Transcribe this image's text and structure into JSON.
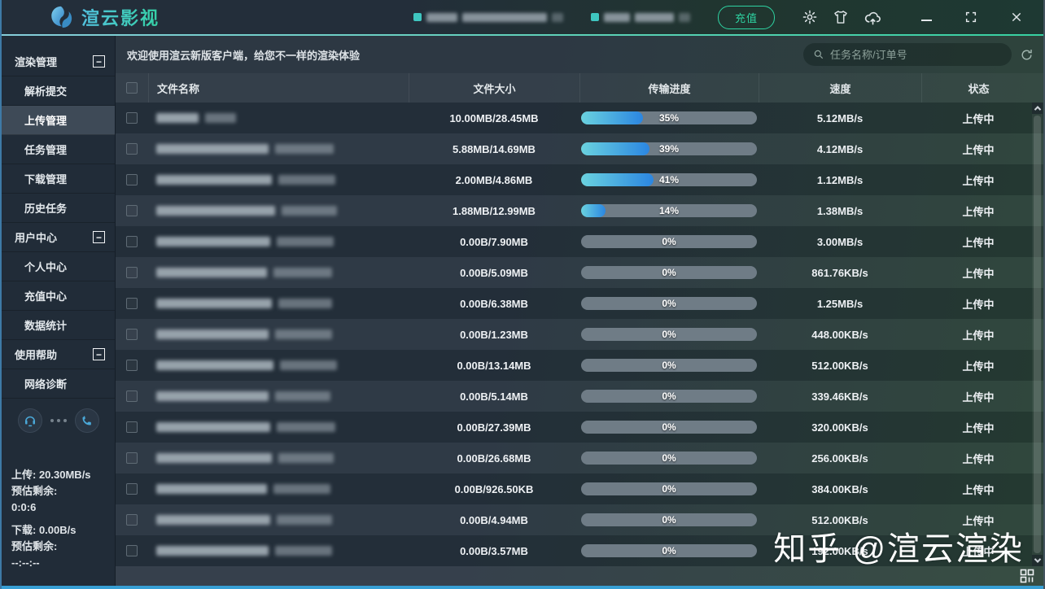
{
  "titlebar": {
    "logo_text": "渲云影视",
    "recharge_button": "充值"
  },
  "search": {
    "placeholder": "任务名称/订单号"
  },
  "welcome": "欢迎使用渲云新版客户端，给您不一样的渲染体验",
  "sidebar": {
    "collapse_glyph": "−",
    "groups": [
      {
        "label": "渲染管理",
        "items": [
          "解析提交",
          "上传管理",
          "任务管理",
          "下载管理",
          "历史任务"
        ]
      },
      {
        "label": "用户中心",
        "items": [
          "个人中心",
          "充值中心",
          "数据统计"
        ]
      },
      {
        "label": "使用帮助",
        "items": [
          "网络诊断"
        ]
      }
    ],
    "active_item": "上传管理",
    "transfer_stats": {
      "upload_label": "上传: 20.30MB/s",
      "upload_eta_label": "预估剩余:",
      "upload_eta": "0:0:6",
      "download_label": "下载: 0.00B/s",
      "download_eta_label": "预估剩余:",
      "download_eta": "--:--:--"
    }
  },
  "table": {
    "columns": [
      "文件名称",
      "文件大小",
      "传输进度",
      "速度",
      "状态"
    ],
    "rows": [
      {
        "size": "10.00MB/28.45MB",
        "progress_pct": 35,
        "progress_label": "35%",
        "speed": "5.12MB/s",
        "status": "上传中",
        "mask": [
          52,
          38
        ]
      },
      {
        "size": "5.88MB/14.69MB",
        "progress_pct": 39,
        "progress_label": "39%",
        "speed": "4.12MB/s",
        "status": "上传中",
        "mask": [
          138,
          72
        ]
      },
      {
        "size": "2.00MB/4.86MB",
        "progress_pct": 41,
        "progress_label": "41%",
        "speed": "1.12MB/s",
        "status": "上传中",
        "mask": [
          142,
          70
        ]
      },
      {
        "size": "1.88MB/12.99MB",
        "progress_pct": 14,
        "progress_label": "14%",
        "speed": "1.38MB/s",
        "status": "上传中",
        "mask": [
          146,
          68
        ]
      },
      {
        "size": "0.00B/7.90MB",
        "progress_pct": 0,
        "progress_label": "0%",
        "speed": "3.00MB/s",
        "status": "上传中",
        "mask": [
          140,
          70
        ]
      },
      {
        "size": "0.00B/5.09MB",
        "progress_pct": 0,
        "progress_label": "0%",
        "speed": "861.76KB/s",
        "status": "上传中",
        "mask": [
          136,
          72
        ]
      },
      {
        "size": "0.00B/6.38MB",
        "progress_pct": 0,
        "progress_label": "0%",
        "speed": "1.25MB/s",
        "status": "上传中",
        "mask": [
          142,
          66
        ]
      },
      {
        "size": "0.00B/1.23MB",
        "progress_pct": 0,
        "progress_label": "0%",
        "speed": "448.00KB/s",
        "status": "上传中",
        "mask": [
          138,
          70
        ]
      },
      {
        "size": "0.00B/13.14MB",
        "progress_pct": 0,
        "progress_label": "0%",
        "speed": "512.00KB/s",
        "status": "上传中",
        "mask": [
          144,
          70
        ]
      },
      {
        "size": "0.00B/5.14MB",
        "progress_pct": 0,
        "progress_label": "0%",
        "speed": "339.46KB/s",
        "status": "上传中",
        "mask": [
          138,
          68
        ]
      },
      {
        "size": "0.00B/27.39MB",
        "progress_pct": 0,
        "progress_label": "0%",
        "speed": "320.00KB/s",
        "status": "上传中",
        "mask": [
          140,
          72
        ]
      },
      {
        "size": "0.00B/26.68MB",
        "progress_pct": 0,
        "progress_label": "0%",
        "speed": "256.00KB/s",
        "status": "上传中",
        "mask": [
          142,
          68
        ]
      },
      {
        "size": "0.00B/926.50KB",
        "progress_pct": 0,
        "progress_label": "0%",
        "speed": "384.00KB/s",
        "status": "上传中",
        "mask": [
          136,
          70
        ]
      },
      {
        "size": "0.00B/4.94MB",
        "progress_pct": 0,
        "progress_label": "0%",
        "speed": "512.00KB/s",
        "status": "上传中",
        "mask": [
          140,
          68
        ]
      },
      {
        "size": "0.00B/3.57MB",
        "progress_pct": 0,
        "progress_label": "0%",
        "speed": "192.00KB/s",
        "status": "上传中",
        "mask": [
          138,
          70
        ]
      }
    ]
  },
  "watermark": "知乎 @渲云渲染",
  "icons": {
    "logo": "fish-swirl",
    "settings": "gear",
    "theme": "t-shirt",
    "upload": "cloud-arrow-up",
    "search": "magnifier",
    "refresh": "circular-arrow",
    "support": "headset",
    "contact": "phone"
  },
  "colors": {
    "accent_green": "#2ed3a2",
    "progress_fill_start": "#6ad2df",
    "progress_fill_end": "#2b86e1",
    "progress_track": "#6f7c86",
    "bottom_border": "#379fd4",
    "sidebar_bg": "#212c38",
    "active_item_bg": "#3e4a57"
  }
}
